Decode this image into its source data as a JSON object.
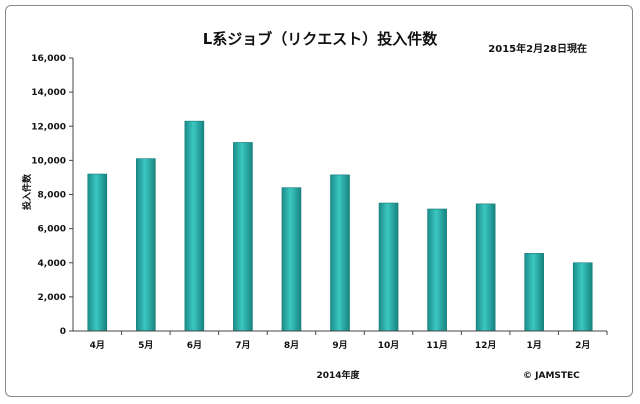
{
  "chart_data": {
    "type": "bar",
    "title": "L系ジョブ（リクエスト）投入件数",
    "date_note": "2015年2月28日現在",
    "xlabel": "2014年度",
    "ylabel": "投入件数",
    "credit": "© JAMSTEC",
    "categories": [
      "4月",
      "5月",
      "6月",
      "7月",
      "8月",
      "9月",
      "10月",
      "11月",
      "12月",
      "1月",
      "2月"
    ],
    "values": [
      9200,
      10100,
      12300,
      11050,
      8400,
      9150,
      7500,
      7150,
      7450,
      4550,
      4000
    ],
    "ylim": [
      0,
      16000
    ],
    "yticks": [
      "0",
      "2,000",
      "4,000",
      "6,000",
      "8,000",
      "10,000",
      "12,000",
      "14,000",
      "16,000"
    ],
    "ytick_values": [
      0,
      2000,
      4000,
      6000,
      8000,
      10000,
      12000,
      14000,
      16000
    ],
    "grid": false,
    "legend": "none",
    "bar_color": "#27aaa6"
  }
}
